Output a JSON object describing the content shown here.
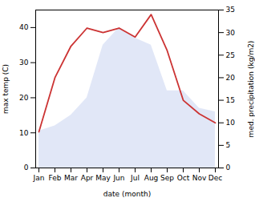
{
  "chart_data": {
    "type": "area",
    "categories": [
      "Jan",
      "Feb",
      "Mar",
      "Apr",
      "May",
      "Jun",
      "Jul",
      "Aug",
      "Sep",
      "Oct",
      "Nov",
      "Dec"
    ],
    "series": [
      {
        "type": "area",
        "color": "#c8d4f0",
        "values": [
          10.5,
          12,
          15,
          20,
          35,
          40,
          37,
          35,
          22,
          22,
          17,
          16
        ]
      },
      {
        "type": "line",
        "color": "#cc3333",
        "axis": "y2",
        "values": [
          8,
          20,
          27,
          31,
          30,
          31,
          29,
          34,
          26,
          15,
          12,
          10
        ]
      }
    ],
    "xlabel": "date (month)",
    "ylabel": "max temp (C)",
    "y2label": "med. precipitation (kg/m2)",
    "ylim": [
      0,
      45
    ],
    "yticks": [
      0,
      10,
      20,
      30,
      40
    ],
    "y2lim": [
      0,
      35
    ],
    "y2ticks": [
      0,
      5,
      10,
      15,
      20,
      25,
      30,
      35
    ]
  }
}
